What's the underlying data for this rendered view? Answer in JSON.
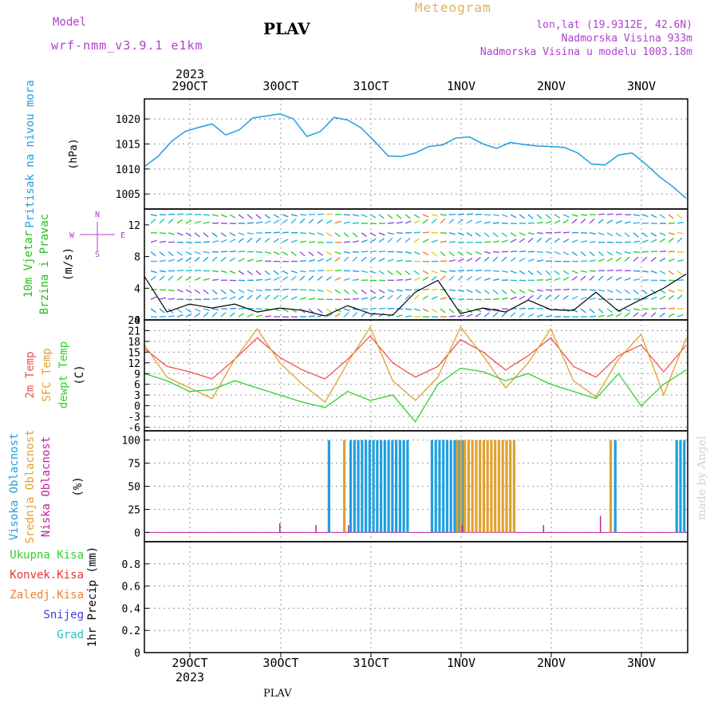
{
  "header": {
    "model_label": "Model",
    "model_name": "wrf-nmm_v3.9.1 e1km",
    "station": "PLAV",
    "product": "Meteogram",
    "location": "lon,lat (19.9312E, 42.6N)",
    "elevation": "Nadmorska Visina 933m",
    "model_elevation": "Nadmorska Visina u modelu 1003.18m",
    "footer_station": "PLAV",
    "credit": "made by Angel"
  },
  "colors": {
    "pressure": "#1f9fe0",
    "wind_label": "#20c020",
    "temp2m": "#f05050",
    "sfc": "#e0a030",
    "dewpt": "#30d030",
    "high_cloud": "#1f9fe0",
    "mid_cloud": "#e0a030",
    "low_cloud": "#c020a0",
    "compass": "#b040d0",
    "total_rain": "#30d030",
    "conv_rain": "#f03030",
    "frz_rain": "#f08030",
    "snow": "#4040e0",
    "hail": "#20c0c0"
  },
  "chart_data": [
    {
      "type": "line",
      "panel": "pressure",
      "ylabel": [
        "Pritisak na nivou mora",
        "(hPa)"
      ],
      "ylim": [
        1002,
        1024
      ],
      "yticks": [
        1005,
        1010,
        1015,
        1020
      ],
      "grid": true,
      "series": [
        {
          "x": [
            0,
            0.15,
            0.3,
            0.45,
            0.6,
            0.75,
            0.9,
            1.05,
            1.2,
            1.35,
            1.5,
            1.65,
            1.8,
            1.95,
            2.1,
            2.25,
            2.4,
            2.55,
            2.7,
            2.85,
            3.0,
            3.15,
            3.3,
            3.45,
            3.6,
            3.75,
            3.9,
            4.05,
            4.2,
            4.35,
            4.5,
            4.65,
            4.8,
            4.95,
            5.1,
            5.25,
            5.4,
            5.55,
            5.7,
            5.85,
            6.0
          ],
          "values": [
            1010.5,
            1012.5,
            1015.5,
            1017.5,
            1018.3,
            1019,
            1016.8,
            1017.8,
            1020.2,
            1020.6,
            1021,
            1020,
            1016.5,
            1017.5,
            1020.3,
            1019.8,
            1018.2,
            1015.5,
            1012.6,
            1012.5,
            1013.2,
            1014.5,
            1014.8,
            1016.2,
            1016.4,
            1015,
            1014.1,
            1015.3,
            1014.9,
            1014.6,
            1014.5,
            1014.3,
            1013.2,
            1011,
            1010.8,
            1012.8,
            1013.2,
            1011,
            1008.5,
            1006.5,
            1004.1
          ]
        }
      ]
    },
    {
      "type": "line",
      "panel": "wind",
      "ylabel": [
        "10m Vjetar",
        "Brzina i Pravac",
        "(m/s)"
      ],
      "compass": [
        "N",
        "W",
        "E",
        "S"
      ],
      "ylim": [
        0,
        14
      ],
      "yticks": [
        0,
        4,
        8,
        12
      ],
      "grid": false,
      "series": [
        {
          "name": "speed",
          "x": [
            0,
            0.25,
            0.5,
            0.75,
            1.0,
            1.25,
            1.5,
            1.75,
            2.0,
            2.25,
            2.5,
            2.75,
            3.0,
            3.25,
            3.5,
            3.75,
            4.0,
            4.25,
            4.5,
            4.75,
            5.0,
            5.25,
            5.5,
            5.75,
            6.0
          ],
          "values": [
            5.5,
            1,
            2,
            1.5,
            2,
            1,
            1.5,
            1.2,
            0.5,
            1.8,
            0.8,
            0.6,
            3.5,
            5,
            0.8,
            1.5,
            1,
            2.5,
            1.3,
            1.2,
            3.5,
            1.1,
            2.6,
            4,
            5.8
          ]
        }
      ]
    },
    {
      "type": "line",
      "panel": "temperature",
      "ylabel": [
        "2m Temp",
        "SFC Temp",
        "dewpt Temp",
        "(C)"
      ],
      "ylim": [
        -7,
        24
      ],
      "yticks": [
        -6,
        -3,
        0,
        3,
        6,
        9,
        12,
        15,
        18,
        21,
        24
      ],
      "grid": true,
      "series": [
        {
          "name": "2m Temp",
          "x": [
            0,
            0.25,
            0.5,
            0.75,
            1.0,
            1.25,
            1.5,
            1.75,
            2.0,
            2.25,
            2.5,
            2.75,
            3.0,
            3.25,
            3.5,
            3.75,
            4.0,
            4.25,
            4.5,
            4.75,
            5.0,
            5.25,
            5.5,
            5.75,
            6.0
          ],
          "values": [
            16,
            11,
            9.5,
            7.5,
            13,
            19,
            13.5,
            10,
            7.5,
            13,
            19.5,
            12,
            8,
            11,
            18.5,
            15,
            10,
            14,
            19,
            11,
            8,
            14,
            17,
            9.5,
            17
          ]
        },
        {
          "name": "SFC Temp",
          "x": [
            0,
            0.25,
            0.5,
            0.75,
            1.0,
            1.25,
            1.5,
            1.75,
            2.0,
            2.25,
            2.5,
            2.75,
            3.0,
            3.25,
            3.5,
            3.75,
            4.0,
            4.25,
            4.5,
            4.75,
            5.0,
            5.25,
            5.5,
            5.75,
            6.0
          ],
          "values": [
            17,
            8,
            5,
            2,
            13,
            21.5,
            12,
            6,
            1,
            12,
            22,
            7,
            1.5,
            8,
            22,
            14,
            5,
            12,
            21.5,
            7,
            2.5,
            13,
            20,
            3,
            19
          ]
        },
        {
          "name": "dewpt Temp",
          "x": [
            0,
            0.25,
            0.5,
            0.75,
            1.0,
            1.25,
            1.5,
            1.75,
            2.0,
            2.25,
            2.5,
            2.75,
            3.0,
            3.25,
            3.5,
            3.75,
            4.0,
            4.25,
            4.5,
            4.75,
            5.0,
            5.25,
            5.5,
            5.75,
            6.0
          ],
          "values": [
            9,
            7,
            4,
            4.5,
            7,
            5,
            3,
            1,
            -0.5,
            4,
            1.5,
            3,
            -4.5,
            6,
            10.5,
            9.5,
            7,
            9,
            6,
            4,
            2,
            9,
            0,
            6,
            10
          ]
        }
      ]
    },
    {
      "type": "bar",
      "panel": "cloud",
      "ylabel": [
        "Visoka Oblacnost",
        "Srednja Oblacnost",
        "Niska Oblacnost",
        "(%)"
      ],
      "ylim": [
        -10,
        110
      ],
      "yticks": [
        0,
        25,
        50,
        75,
        100
      ],
      "grid": true,
      "series": [
        {
          "name": "Visoka Oblacnost",
          "ranges": [
            [
              2.03,
              2.05
            ],
            [
              2.27,
              2.91
            ],
            [
              3.17,
              3.52
            ],
            [
              5.2,
              5.21
            ],
            [
              5.88,
              6.0
            ]
          ],
          "value": 100
        },
        {
          "name": "Srednja Oblacnost",
          "ranges": [
            [
              2.2,
              2.22
            ],
            [
              3.45,
              4.12
            ],
            [
              5.15,
              5.17
            ]
          ],
          "value": 100
        },
        {
          "name": "Niska Oblacnost",
          "spikes": [
            [
              1.5,
              10
            ],
            [
              1.9,
              8
            ],
            [
              2.26,
              8
            ],
            [
              3.52,
              8
            ],
            [
              4.42,
              8
            ],
            [
              5.05,
              18
            ]
          ]
        }
      ]
    },
    {
      "type": "bar",
      "panel": "precip",
      "ylabel": [
        "1hr Precip (mm)"
      ],
      "legend": [
        "Ukupna Kisa",
        "Konvek.Kisa",
        "Zaledj.Kisa",
        "Snijeg",
        "Grad"
      ],
      "ylim": [
        0,
        1
      ],
      "yticks": [
        0,
        0.2,
        0.4,
        0.6,
        0.8
      ],
      "grid": true,
      "values": []
    }
  ],
  "time_axis": {
    "labels": [
      "29OCT",
      "30OCT",
      "31OCT",
      "1NOV",
      "2NOV",
      "3NOV"
    ],
    "year": "2023"
  }
}
